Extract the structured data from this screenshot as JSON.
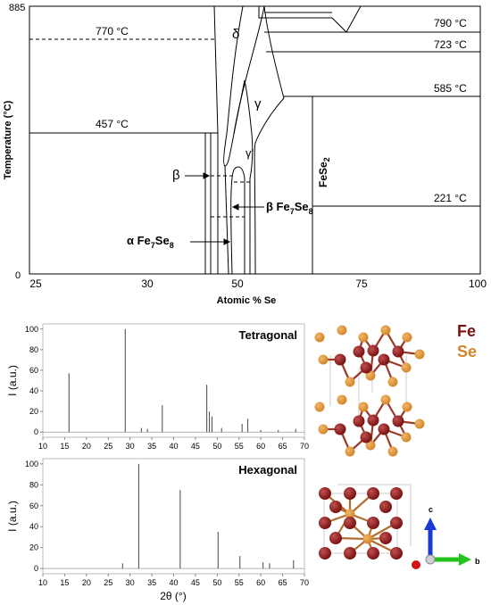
{
  "chart_data": [
    {
      "type": "phase-diagram",
      "xlabel": "Atomic % Se",
      "ylabel": "Temperature (°C)",
      "xlim": [
        25,
        100
      ],
      "ylim": [
        0,
        885
      ],
      "xticks": [
        "25",
        "30",
        "50",
        "75",
        "100"
      ],
      "yticks": [
        "0",
        "885"
      ],
      "isotherms": [
        {
          "label": "770 °C",
          "t": 770
        },
        {
          "label": "790 °C",
          "t": 790
        },
        {
          "label": "723 °C",
          "t": 723
        },
        {
          "label": "585 °C",
          "t": 585
        },
        {
          "label": "457 °C",
          "t": 457
        },
        {
          "label": "221 °C",
          "t": 221
        }
      ],
      "phases": {
        "delta": "δ",
        "gamma": "γ",
        "gamma_prime": "γ'",
        "beta": "β",
        "beta_fe7se8_prefix": "β Fe",
        "alpha_fe7se8_prefix": "α Fe",
        "fe_sub": "7",
        "se_word": "Se",
        "se_sub": "8",
        "fese2": "FeSe",
        "fese2_sub": "2"
      }
    },
    {
      "type": "line",
      "title": "Tetragonal",
      "xlabel": "2θ (°)",
      "ylabel": "I (a.u.)",
      "xlim": [
        10,
        70
      ],
      "ylim": [
        -5,
        105
      ],
      "xticks": [
        10,
        15,
        20,
        25,
        30,
        35,
        40,
        45,
        50,
        55,
        60,
        65,
        70
      ],
      "yticks": [
        0,
        20,
        40,
        60,
        80,
        100
      ],
      "peaks": [
        [
          16.0,
          57
        ],
        [
          28.9,
          100
        ],
        [
          32.6,
          4
        ],
        [
          34.0,
          3
        ],
        [
          37.4,
          26
        ],
        [
          47.6,
          46
        ],
        [
          48.2,
          20
        ],
        [
          48.8,
          15
        ],
        [
          51.0,
          4
        ],
        [
          55.7,
          8
        ],
        [
          57.0,
          13
        ],
        [
          60.0,
          2
        ],
        [
          64.0,
          2
        ],
        [
          68.0,
          3
        ]
      ]
    },
    {
      "type": "line",
      "title": "Hexagonal",
      "xlabel": "2θ (°)",
      "ylabel": "I (a.u.)",
      "xlim": [
        10,
        70
      ],
      "ylim": [
        -5,
        105
      ],
      "xticks": [
        10,
        15,
        20,
        25,
        30,
        35,
        40,
        45,
        50,
        55,
        60,
        65,
        70
      ],
      "yticks": [
        0,
        20,
        40,
        60,
        80,
        100
      ],
      "peaks": [
        [
          28.3,
          5
        ],
        [
          32.0,
          100
        ],
        [
          41.5,
          75
        ],
        [
          50.2,
          35
        ],
        [
          55.2,
          12
        ],
        [
          60.5,
          6
        ],
        [
          62.0,
          5
        ],
        [
          67.5,
          8
        ]
      ]
    }
  ],
  "legend": {
    "fe": "Fe",
    "se": "Se",
    "fe_color": "#7a1212",
    "se_color": "#d4862a"
  },
  "axes_triad": {
    "c_label": "c",
    "b_label": "b",
    "c_color": "#1a3ad6",
    "b_color": "#24c21c",
    "a_color": "#d41414"
  }
}
